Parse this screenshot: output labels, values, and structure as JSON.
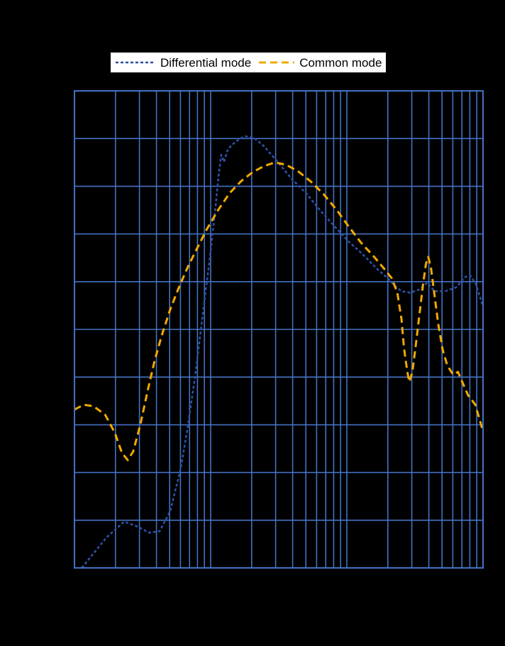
{
  "colors": {
    "background": "#000000",
    "grid": "#4472c4",
    "plot_border": "#4472c4",
    "legend_background": "#ffffff",
    "legend_text": "#000000",
    "differential": "#2e4fa3",
    "common": "#f2a900"
  },
  "legend": {
    "items": [
      {
        "label": "Differential mode",
        "color": "#2e4fa3",
        "dash": "4 3",
        "width": "2.6"
      },
      {
        "label": "Common mode",
        "color": "#f2a900",
        "dash": "10 6",
        "width": "3"
      }
    ]
  },
  "chart_data": {
    "type": "line",
    "title": "",
    "xlabel": "",
    "ylabel": "",
    "x_scale": "log",
    "x_range": [
      0.01,
      10
    ],
    "y_range": [
      0,
      100
    ],
    "y_tick_step": 10,
    "grid": "on",
    "legend_position": "top",
    "tick_labels_visible": false,
    "series": [
      {
        "name": "Differential mode",
        "color": "#2e4fa3",
        "dash": [
          4,
          3
        ],
        "width": 2.6,
        "points": [
          [
            0.0113,
            0
          ],
          [
            0.0135,
            2.7
          ],
          [
            0.0172,
            6.4
          ],
          [
            0.0232,
            9.7
          ],
          [
            0.0294,
            8.6
          ],
          [
            0.0352,
            7.4
          ],
          [
            0.0422,
            7.7
          ],
          [
            0.0505,
            11.9
          ],
          [
            0.0603,
            20.8
          ],
          [
            0.0681,
            29.8
          ],
          [
            0.0769,
            40.2
          ],
          [
            0.0866,
            52.1
          ],
          [
            0.0977,
            64.0
          ],
          [
            0.1075,
            74.4
          ],
          [
            0.114,
            81.8
          ],
          [
            0.1195,
            86.6
          ],
          [
            0.1251,
            85.1
          ],
          [
            0.134,
            87.8
          ],
          [
            0.1516,
            89.3
          ],
          [
            0.1779,
            90.5
          ],
          [
            0.2072,
            90.2
          ],
          [
            0.2446,
            88.5
          ],
          [
            0.3105,
            85.1
          ],
          [
            0.3942,
            81.5
          ],
          [
            0.5005,
            78.6
          ],
          [
            0.6353,
            75.0
          ],
          [
            0.8066,
            71.7
          ],
          [
            1.024,
            68.5
          ],
          [
            1.3,
            65.8
          ],
          [
            1.65,
            62.8
          ],
          [
            2.0,
            60.7
          ],
          [
            2.24,
            59.2
          ],
          [
            2.52,
            58.0
          ],
          [
            2.92,
            57.7
          ],
          [
            3.37,
            58.3
          ],
          [
            3.92,
            59.8
          ],
          [
            4.4,
            58.0
          ],
          [
            5.28,
            58.0
          ],
          [
            6.34,
            58.8
          ],
          [
            7.4,
            61.0
          ],
          [
            8.05,
            61.3
          ],
          [
            8.87,
            59.5
          ],
          [
            10,
            54.8
          ]
        ]
      },
      {
        "name": "Common mode",
        "color": "#f2a900",
        "dash": [
          10,
          6
        ],
        "width": 3,
        "points": [
          [
            0.01,
            33.2
          ],
          [
            0.0117,
            34.2
          ],
          [
            0.0138,
            33.9
          ],
          [
            0.0168,
            32.1
          ],
          [
            0.0198,
            28.3
          ],
          [
            0.0223,
            24.1
          ],
          [
            0.0246,
            22.6
          ],
          [
            0.027,
            24.4
          ],
          [
            0.0305,
            30.1
          ],
          [
            0.0343,
            36.9
          ],
          [
            0.0388,
            43.5
          ],
          [
            0.0438,
            48.8
          ],
          [
            0.0505,
            54.2
          ],
          [
            0.0581,
            58.6
          ],
          [
            0.0672,
            62.8
          ],
          [
            0.0795,
            67.0
          ],
          [
            0.0942,
            71.1
          ],
          [
            0.114,
            75.1
          ],
          [
            0.138,
            78.6
          ],
          [
            0.1678,
            81.1
          ],
          [
            0.2024,
            82.9
          ],
          [
            0.2446,
            84.2
          ],
          [
            0.2967,
            85.0
          ],
          [
            0.3588,
            84.5
          ],
          [
            0.4366,
            83.2
          ],
          [
            0.5438,
            81.0
          ],
          [
            0.6775,
            78.3
          ],
          [
            0.8442,
            75.0
          ],
          [
            1.024,
            71.7
          ],
          [
            1.269,
            68.2
          ],
          [
            1.589,
            65.2
          ],
          [
            1.906,
            62.5
          ],
          [
            2.14,
            60.7
          ],
          [
            2.35,
            57.7
          ],
          [
            2.52,
            52.1
          ],
          [
            2.63,
            46.1
          ],
          [
            2.77,
            41.4
          ],
          [
            2.87,
            39.0
          ],
          [
            3.02,
            40.9
          ],
          [
            3.2,
            46.4
          ],
          [
            3.44,
            53.9
          ],
          [
            3.63,
            59.5
          ],
          [
            3.81,
            63.7
          ],
          [
            3.96,
            65.2
          ],
          [
            4.15,
            62.8
          ],
          [
            4.4,
            57.3
          ],
          [
            4.68,
            51.3
          ],
          [
            5.05,
            45.8
          ],
          [
            5.47,
            42.4
          ],
          [
            6.04,
            40.5
          ],
          [
            6.55,
            41.1
          ],
          [
            7.04,
            39.0
          ],
          [
            7.74,
            36.3
          ],
          [
            8.78,
            34.2
          ],
          [
            10,
            28.6
          ]
        ]
      }
    ]
  }
}
